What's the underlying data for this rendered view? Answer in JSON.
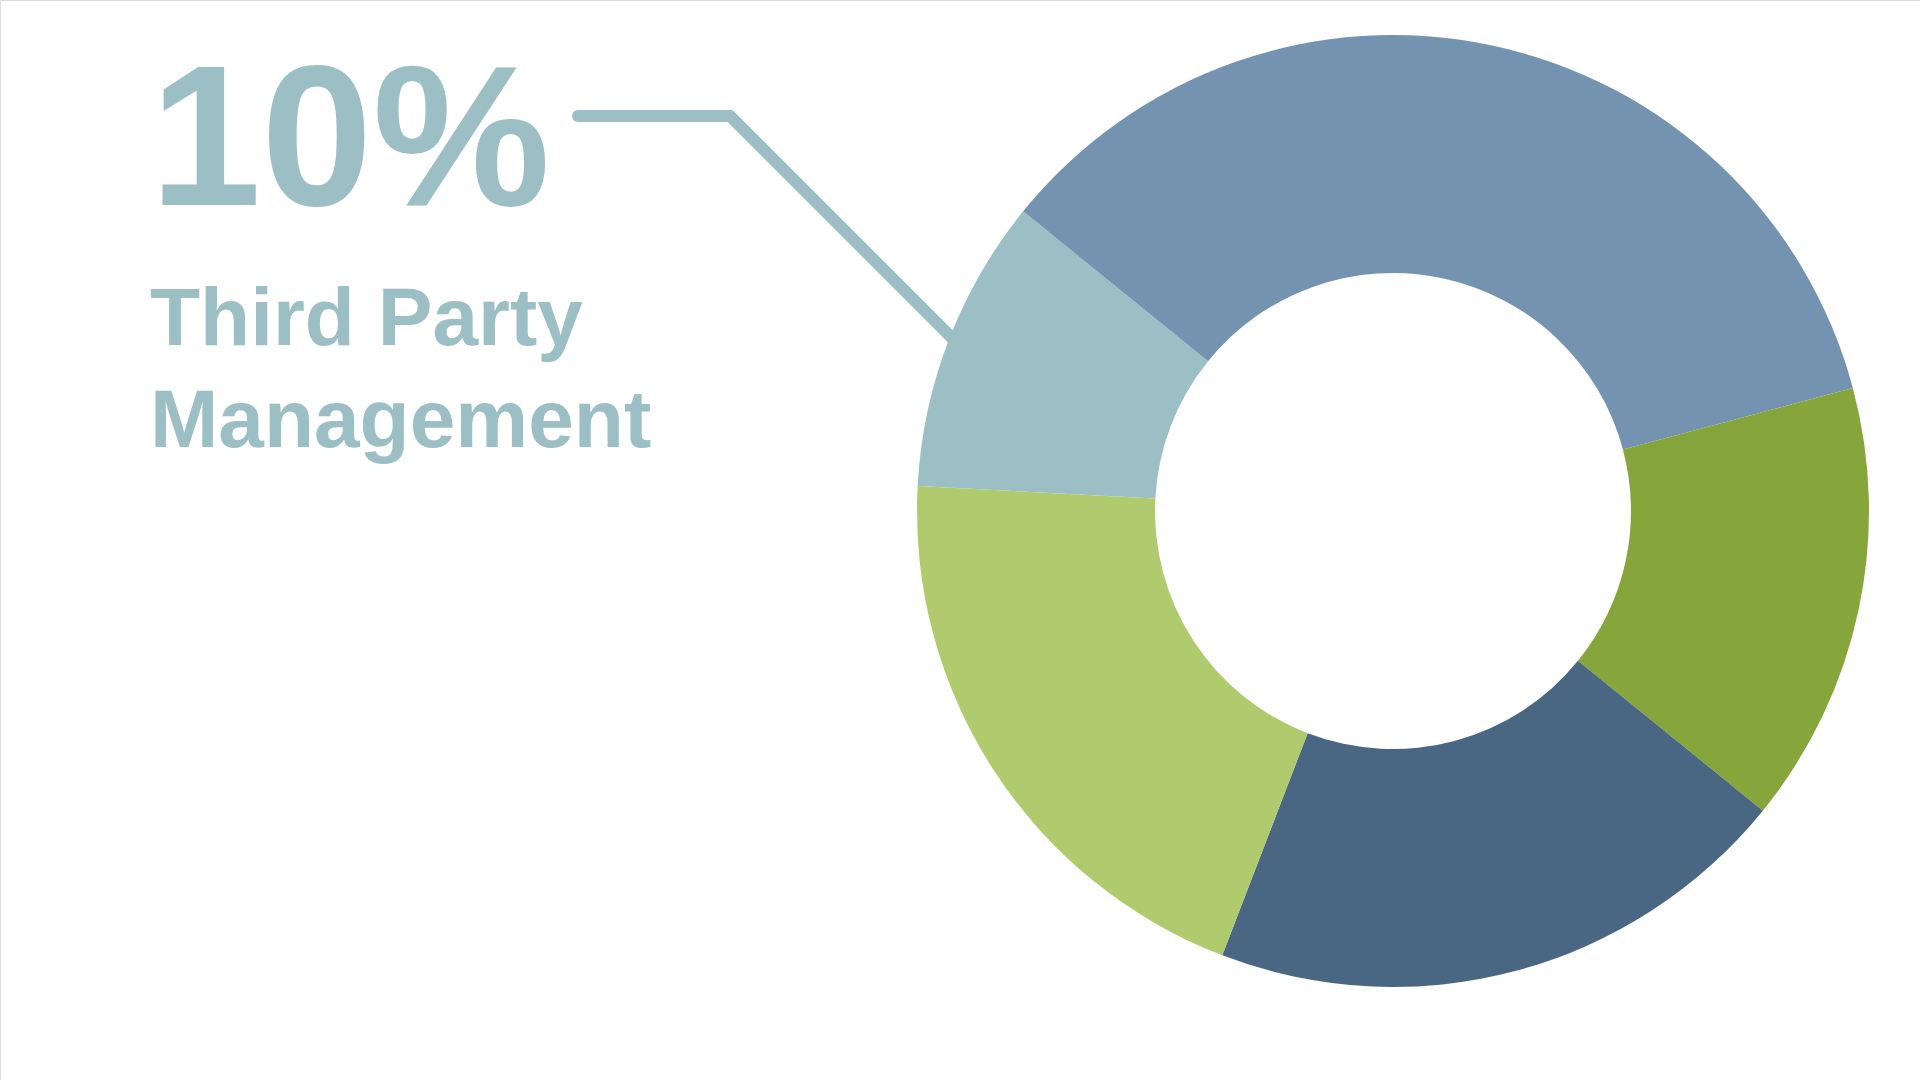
{
  "chart_data": {
    "type": "donut",
    "categories": [
      "Third Party Management",
      null,
      null,
      null,
      null
    ],
    "values": [
      10,
      35,
      15,
      20,
      20
    ],
    "colors": [
      "#9bbfc4",
      "#7393b0",
      "#86a63c",
      "#496682",
      "#b0cb6e"
    ],
    "value_labels": [
      "10%",
      null,
      null,
      null,
      null
    ]
  }
}
